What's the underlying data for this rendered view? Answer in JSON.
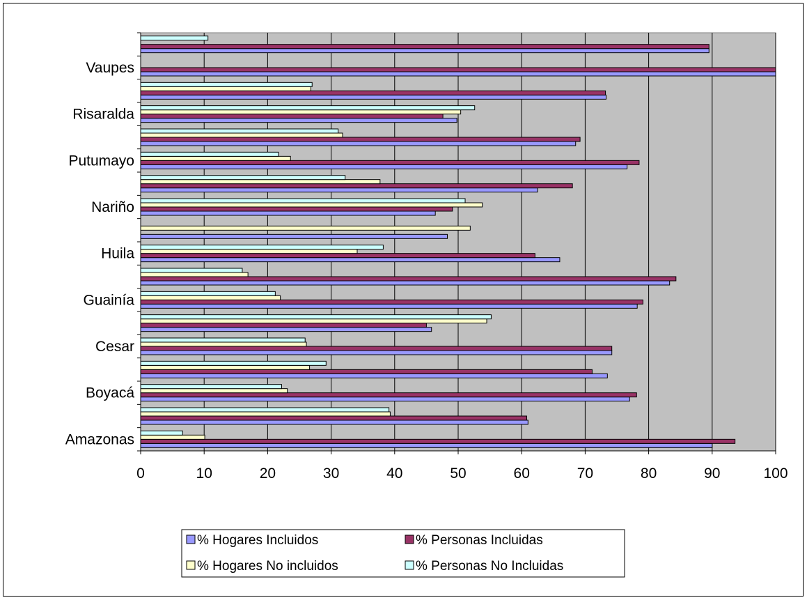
{
  "chart_data": {
    "type": "bar",
    "orientation": "horizontal",
    "title": "",
    "xlabel": "",
    "ylabel": "",
    "xlim": [
      0,
      100
    ],
    "x_ticks": [
      0,
      10,
      20,
      30,
      40,
      50,
      60,
      70,
      80,
      90,
      100
    ],
    "grid": true,
    "legend_position": "bottom",
    "category_labels": [
      "Amazonas",
      "Boyacá",
      "Cesar",
      "Guainía",
      "Huila",
      "Nariño",
      "Putumayo",
      "Risaralda",
      "Vaupes"
    ],
    "categories_bottom_to_top": [
      "Amazonas",
      "",
      "Boyacá",
      "",
      "Cesar",
      "",
      "Guainía",
      "",
      "Huila",
      "",
      "Nariño",
      "",
      "Putumayo",
      "",
      "Risaralda",
      "",
      "Vaupes",
      ""
    ],
    "series": [
      {
        "name": "% Hogares Incluidos",
        "color": "#9999ff",
        "values": [
          90,
          61,
          77,
          73.5,
          74.2,
          45.8,
          78.2,
          83.3,
          66,
          48.3,
          46.4,
          62.5,
          76.6,
          68.5,
          49.8,
          73.3,
          100,
          89.5
        ]
      },
      {
        "name": "% Personas Incluidas",
        "color": "#993366",
        "values": [
          93.6,
          60.8,
          78.1,
          71.1,
          74.2,
          45,
          79.1,
          84.3,
          62.1,
          0,
          49.1,
          68,
          78.5,
          69.2,
          47.6,
          73.2,
          100,
          89.5
        ]
      },
      {
        "name": "% Hogares No incluidos",
        "color": "#ffffcc",
        "values": [
          10.1,
          39.3,
          23.1,
          26.6,
          26.1,
          54.5,
          22,
          16.9,
          34.1,
          51.9,
          53.8,
          37.7,
          23.6,
          31.8,
          50.4,
          26.8,
          0,
          0
        ]
      },
      {
        "name": "% Personas No Incluidas",
        "color": "#ccffff",
        "values": [
          6.6,
          39.1,
          22.2,
          29.2,
          25.9,
          55.2,
          21.2,
          16,
          38.2,
          0,
          51.1,
          32.2,
          21.7,
          31.1,
          52.6,
          27,
          0,
          10.6
        ]
      }
    ]
  }
}
